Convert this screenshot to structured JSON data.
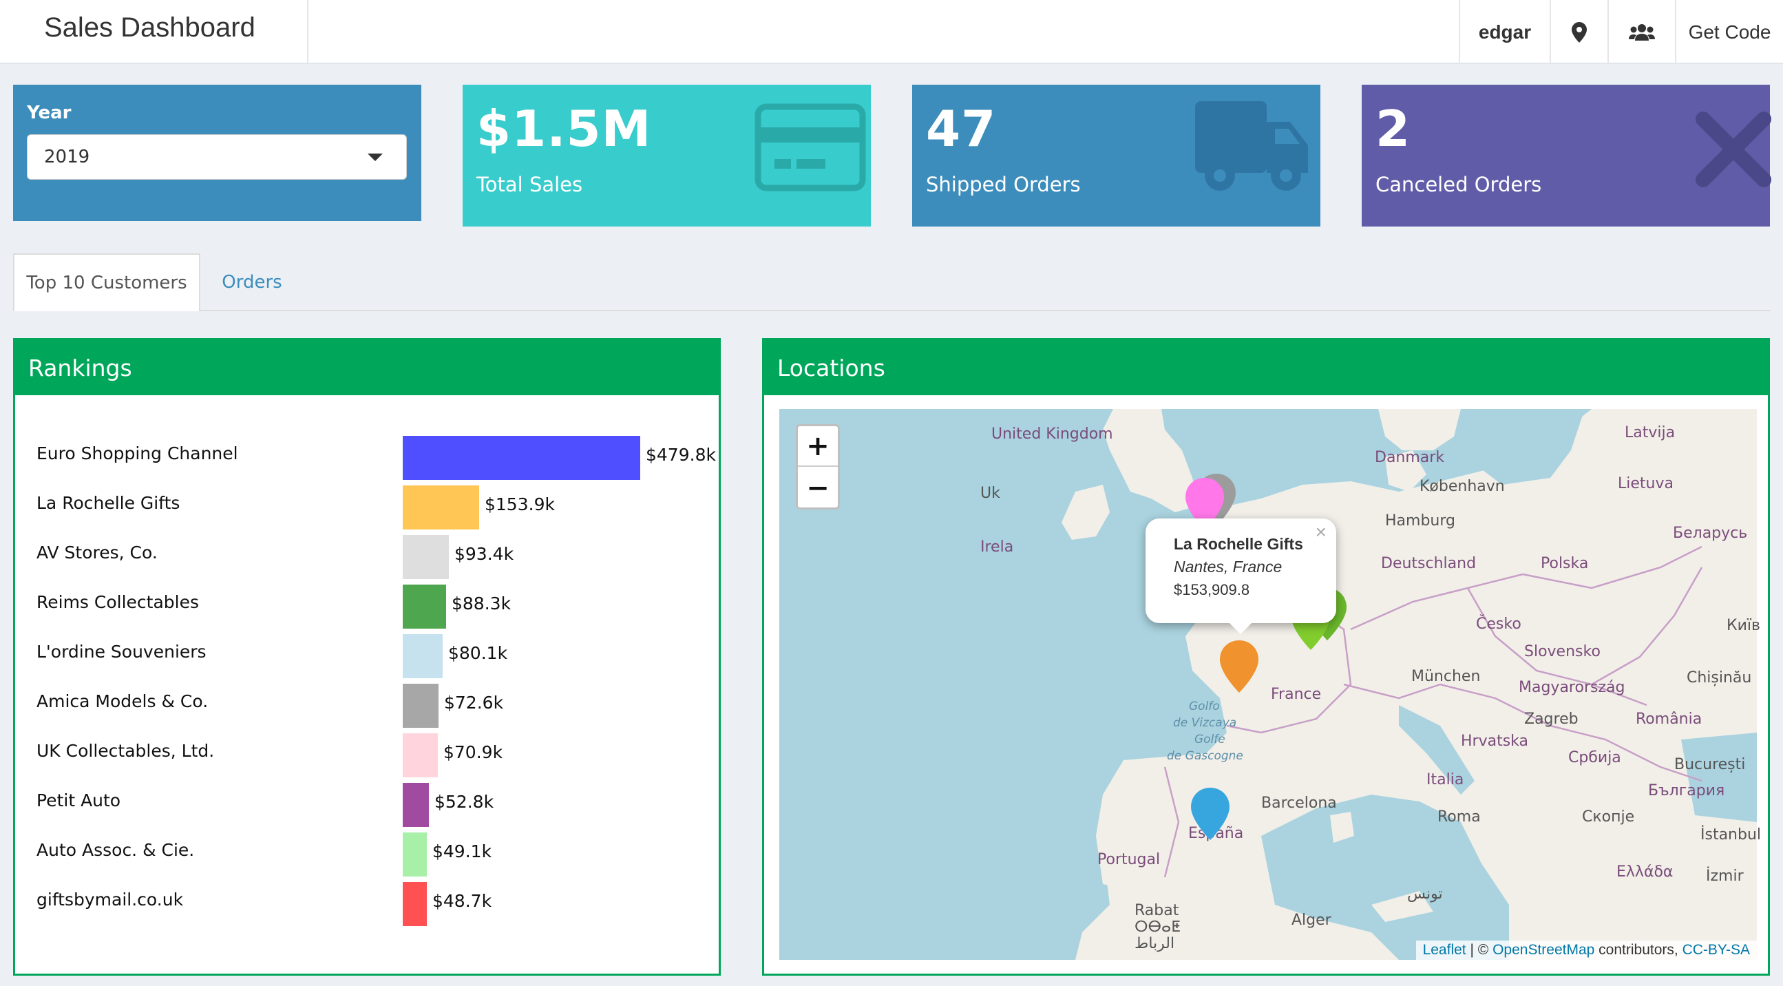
{
  "header": {
    "title": "Sales Dashboard",
    "user": "edgar",
    "get_code": "Get Code"
  },
  "year_box": {
    "label": "Year",
    "selected": "2019"
  },
  "value_boxes": [
    {
      "value": "$1.5M",
      "caption": "Total Sales",
      "color": "#39cccc",
      "icon": "credit-card-icon"
    },
    {
      "value": "47",
      "caption": "Shipped Orders",
      "color": "#3c8dbc",
      "icon": "truck-icon"
    },
    {
      "value": "2",
      "caption": "Canceled Orders",
      "color": "#605ca8",
      "icon": "close-icon"
    }
  ],
  "tabs": [
    {
      "label": "Top 10 Customers",
      "active": true
    },
    {
      "label": "Orders",
      "active": false
    }
  ],
  "rankings": {
    "title": "Rankings",
    "chart_data": {
      "type": "bar",
      "orientation": "horizontal",
      "categories": [
        "Euro Shopping Channel",
        "La Rochelle Gifts",
        "AV Stores, Co.",
        "Reims Collectables",
        "L'ordine Souveniers",
        "Amica Models & Co.",
        "UK Collectables, Ltd.",
        "Petit Auto",
        "Auto Assoc. & Cie.",
        "giftsbymail.co.uk"
      ],
      "values": [
        479.8,
        153.9,
        93.4,
        88.3,
        80.1,
        72.6,
        70.9,
        52.8,
        49.1,
        48.7
      ],
      "labels": [
        "$479.8k",
        "$153.9k",
        "$93.4k",
        "$88.3k",
        "$80.1k",
        "$72.6k",
        "$70.9k",
        "$52.8k",
        "$49.1k",
        "$48.7k"
      ],
      "colors": [
        "#4f4fff",
        "#ffc555",
        "#dedede",
        "#4ea64e",
        "#c6e2ee",
        "#a7a7a7",
        "#ffd4dd",
        "#a04aa0",
        "#a8f0a8",
        "#ff5151"
      ]
    }
  },
  "locations": {
    "title": "Locations",
    "zoom_in": "+",
    "zoom_out": "−",
    "popup": {
      "name": "La Rochelle Gifts",
      "place": "Nantes, France",
      "amount": "$153,909.8",
      "close": "×"
    },
    "attribution": {
      "leaflet": "Leaflet",
      "sep": " | © ",
      "osm": "OpenStreetMap",
      "contrib": " contributors, ",
      "license": "CC-BY-SA"
    },
    "labels": {
      "uk": "United Kingdom",
      "ireland": "Irela",
      "denmark": "Danmark",
      "kobenhavn": "København",
      "latvija": "Latvija",
      "lietuva": "Lietuva",
      "hamburg": "Hamburg",
      "belarus": "Беларусь",
      "deutschland": "Deutschland",
      "polska": "Polska",
      "cesko": "Česko",
      "kyiv": "Київ",
      "slovensko": "Slovensko",
      "munchen": "München",
      "magyarorszag": "Magyarország",
      "chisinau": "Chișinău",
      "france": "France",
      "zagreb": "Zagreb",
      "romania": "România",
      "hrvatska": "Hrvatska",
      "srbija": "Србија",
      "bucuresti": "București",
      "italia": "Italia",
      "bulgaria": "България",
      "barcelona": "Barcelona",
      "roma": "Roma",
      "skopje": "Скопје",
      "espana": "España",
      "portugal": "Portugal",
      "istanbul": "İstanbul",
      "ellada": "Ελλάδα",
      "izmir": "İzmir",
      "tunis": "تونس",
      "rabat": "Rabat",
      "rabat2": "ⵔⴱⴰⵟ",
      "rabat3": "الرباط",
      "alger": "Alger",
      "biscay1": "Golfo",
      "biscay2": "de Vizcaya",
      "biscay3": "Golfe",
      "biscay4": "de Gascogne",
      "uk_short": "Uk"
    },
    "markers": [
      {
        "name": "La Rochelle Gifts",
        "color": "#f0922e"
      },
      {
        "color": "#ff77e8"
      },
      {
        "color": "#9c9c9c"
      },
      {
        "color": "#38a6de"
      },
      {
        "color": "#82cd2e"
      },
      {
        "color": "#6ab72c"
      }
    ]
  }
}
